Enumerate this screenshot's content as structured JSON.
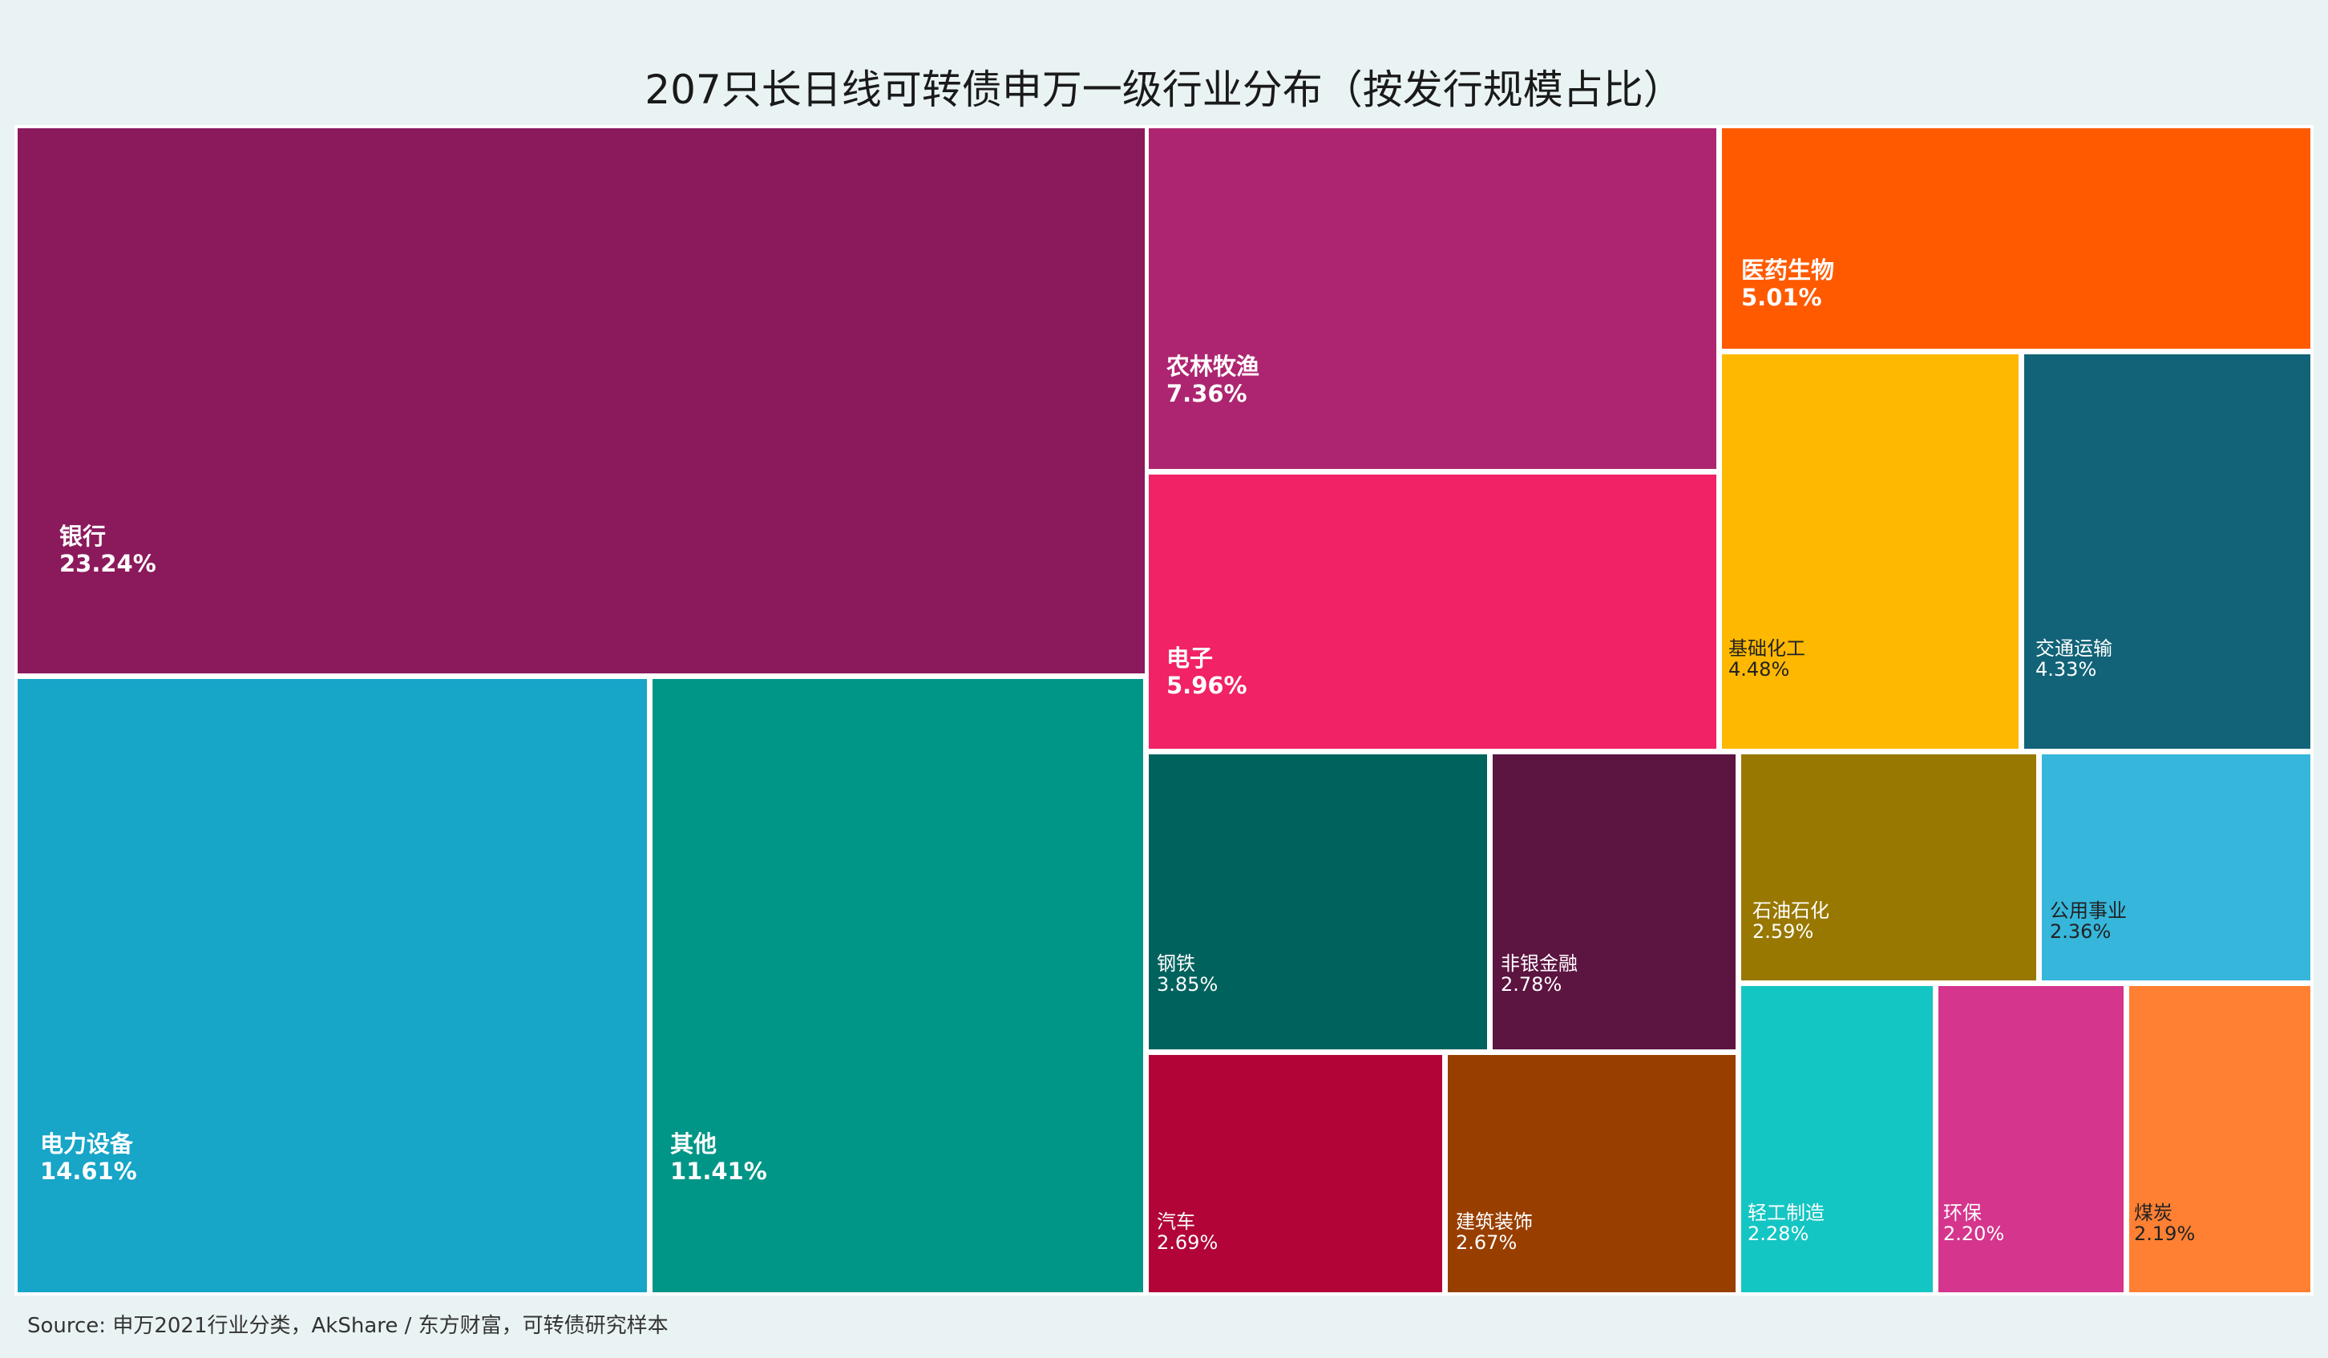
{
  "chart_data": {
    "type": "treemap",
    "title": "207只长日线可转债申万一级行业分布（按发行规模占比）",
    "source_note": "Source: 申万2021行业分类，AkShare / 东方财富，可转债研究样本",
    "items": [
      {
        "name": "银行",
        "pct_label": "23.24%",
        "value": 23.24,
        "color": "#8b1a5c",
        "text_color": "#ffffff",
        "emphasis": true
      },
      {
        "name": "电力设备",
        "pct_label": "14.61%",
        "value": 14.61,
        "color": "#17a5c8",
        "text_color": "#ffffff",
        "emphasis": true
      },
      {
        "name": "其他",
        "pct_label": "11.41%",
        "value": 11.41,
        "color": "#009687",
        "text_color": "#ffffff",
        "emphasis": true
      },
      {
        "name": "农林牧渔",
        "pct_label": "7.36%",
        "value": 7.36,
        "color": "#ad2570",
        "text_color": "#ffffff",
        "emphasis": true
      },
      {
        "name": "电子",
        "pct_label": "5.96%",
        "value": 5.96,
        "color": "#f12265",
        "text_color": "#ffffff",
        "emphasis": true
      },
      {
        "name": "医药生物",
        "pct_label": "5.01%",
        "value": 5.01,
        "color": "#ff5a00",
        "text_color": "#ffffff",
        "emphasis": true
      },
      {
        "name": "基础化工",
        "pct_label": "4.48%",
        "value": 4.48,
        "color": "#feb800",
        "text_color": "#222222",
        "emphasis": false
      },
      {
        "name": "交通运输",
        "pct_label": "4.33%",
        "value": 4.33,
        "color": "#126378",
        "text_color": "#ffffff",
        "emphasis": false
      },
      {
        "name": "钢铁",
        "pct_label": "3.85%",
        "value": 3.85,
        "color": "#00625d",
        "text_color": "#ffffff",
        "emphasis": false
      },
      {
        "name": "非银金融",
        "pct_label": "2.78%",
        "value": 2.78,
        "color": "#5c1441",
        "text_color": "#ffffff",
        "emphasis": false
      },
      {
        "name": "汽车",
        "pct_label": "2.69%",
        "value": 2.69,
        "color": "#b20437",
        "text_color": "#ffffff",
        "emphasis": false
      },
      {
        "name": "建筑装饰",
        "pct_label": "2.67%",
        "value": 2.67,
        "color": "#983f00",
        "text_color": "#ffffff",
        "emphasis": false
      },
      {
        "name": "石油石化",
        "pct_label": "2.59%",
        "value": 2.59,
        "color": "#987800",
        "text_color": "#ffffff",
        "emphasis": false
      },
      {
        "name": "公用事业",
        "pct_label": "2.36%",
        "value": 2.36,
        "color": "#36b6da",
        "text_color": "#222222",
        "emphasis": false
      },
      {
        "name": "轻工制造",
        "pct_label": "2.28%",
        "value": 2.28,
        "color": "#14c6c3",
        "text_color": "#ffffff",
        "emphasis": false
      },
      {
        "name": "环保",
        "pct_label": "2.20%",
        "value": 2.2,
        "color": "#d5358d",
        "text_color": "#ffffff",
        "emphasis": false
      },
      {
        "name": "煤炭",
        "pct_label": "2.19%",
        "value": 2.19,
        "color": "#ff8033",
        "text_color": "#222222",
        "emphasis": false
      }
    ]
  }
}
